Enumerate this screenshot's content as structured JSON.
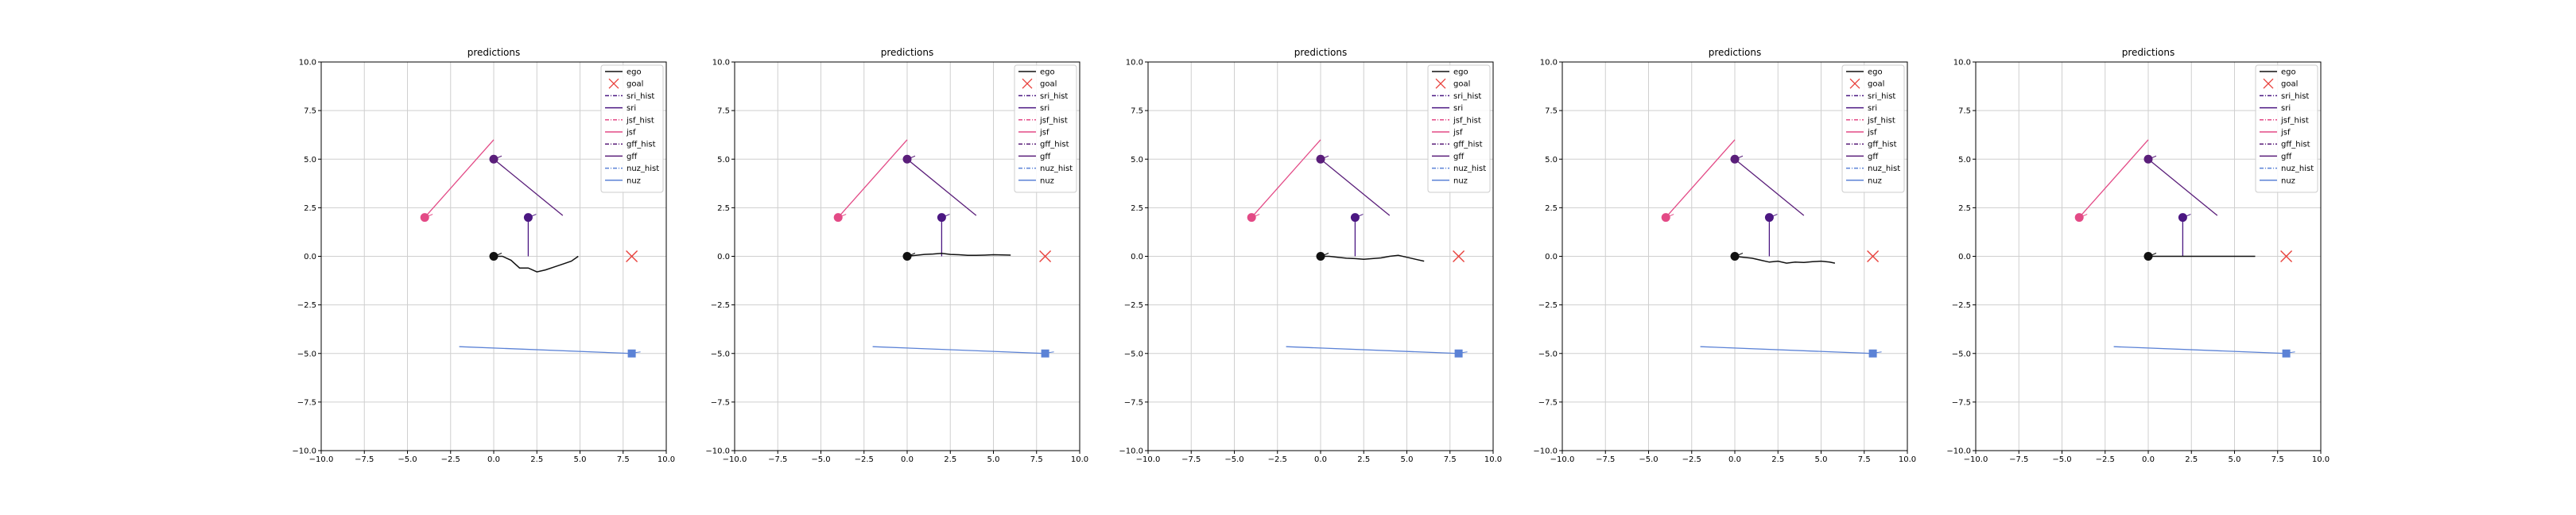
{
  "figure": {
    "colors": {
      "ego": "#111111",
      "goal": "#e8413c",
      "sri": "#4b1782",
      "jsf": "#e34a86",
      "gff": "#5a1e7a",
      "nuz": "#5b82d6",
      "grid": "#cfcfcf"
    }
  },
  "legend_labels": [
    "ego",
    "goal",
    "sri_hist",
    "sri",
    "jsf_hist",
    "jsf",
    "gff_hist",
    "gff",
    "nuz_hist",
    "nuz"
  ],
  "chart_data": [
    {
      "type": "line",
      "title": "predictions",
      "xlim": [
        -10,
        10
      ],
      "ylim": [
        -10,
        10
      ],
      "xticks": [
        "−10.0",
        "−7.5",
        "−5.0",
        "−2.5",
        "0.0",
        "2.5",
        "5.0",
        "7.5",
        "10.0"
      ],
      "yticks": [
        "−10.0",
        "−7.5",
        "−5.0",
        "−2.5",
        "0.0",
        "2.5",
        "5.0",
        "7.5",
        "10.0"
      ],
      "grid": true,
      "legend_position": "top-right",
      "ego": [
        [
          0,
          0
        ],
        [
          0.5,
          0
        ],
        [
          1.0,
          -0.2
        ],
        [
          1.5,
          -0.6
        ],
        [
          2.0,
          -0.6
        ],
        [
          2.5,
          -0.8
        ],
        [
          3.0,
          -0.7
        ],
        [
          3.5,
          -0.55
        ],
        [
          4.0,
          -0.4
        ],
        [
          4.5,
          -0.25
        ],
        [
          4.9,
          0.0
        ]
      ],
      "goal": [
        8,
        0
      ],
      "sri": {
        "start": [
          2,
          2
        ],
        "end": [
          2,
          0
        ]
      },
      "jsf": {
        "start": [
          -4,
          2
        ],
        "end": [
          0,
          6
        ]
      },
      "gff": {
        "start": [
          0,
          5
        ],
        "end": [
          4,
          2.1
        ]
      },
      "nuz": {
        "start": [
          8,
          -5
        ],
        "end": [
          -2,
          -4.65
        ]
      }
    },
    {
      "type": "line",
      "title": "predictions",
      "xlim": [
        -10,
        10
      ],
      "ylim": [
        -10,
        10
      ],
      "xticks": [
        "−10.0",
        "−7.5",
        "−5.0",
        "−2.5",
        "0.0",
        "2.5",
        "5.0",
        "7.5",
        "10.0"
      ],
      "yticks": [
        "−10.0",
        "−7.5",
        "−5.0",
        "−2.5",
        "0.0",
        "2.5",
        "5.0",
        "7.5",
        "10.0"
      ],
      "grid": true,
      "legend_position": "top-right",
      "ego": [
        [
          0,
          0
        ],
        [
          0.5,
          0.05
        ],
        [
          1.0,
          0.1
        ],
        [
          1.5,
          0.12
        ],
        [
          2.0,
          0.15
        ],
        [
          2.5,
          0.1
        ],
        [
          3.0,
          0.08
        ],
        [
          3.5,
          0.05
        ],
        [
          4.0,
          0.05
        ],
        [
          4.5,
          0.06
        ],
        [
          5.0,
          0.08
        ],
        [
          5.5,
          0.07
        ],
        [
          6.0,
          0.06
        ]
      ],
      "goal": [
        8,
        0
      ],
      "sri": {
        "start": [
          2,
          2
        ],
        "end": [
          2,
          0
        ]
      },
      "jsf": {
        "start": [
          -4,
          2
        ],
        "end": [
          0,
          6
        ]
      },
      "gff": {
        "start": [
          0,
          5
        ],
        "end": [
          4,
          2.1
        ]
      },
      "nuz": {
        "start": [
          8,
          -5
        ],
        "end": [
          -2,
          -4.65
        ]
      }
    },
    {
      "type": "line",
      "title": "predictions",
      "xlim": [
        -10,
        10
      ],
      "ylim": [
        -10,
        10
      ],
      "xticks": [
        "−10.0",
        "−7.5",
        "−5.0",
        "−2.5",
        "0.0",
        "2.5",
        "5.0",
        "7.5",
        "10.0"
      ],
      "yticks": [
        "−10.0",
        "−7.5",
        "−5.0",
        "−2.5",
        "0.0",
        "2.5",
        "5.0",
        "7.5",
        "10.0"
      ],
      "grid": true,
      "legend_position": "top-right",
      "ego": [
        [
          0,
          0
        ],
        [
          0.5,
          0.0
        ],
        [
          1.0,
          -0.05
        ],
        [
          1.5,
          -0.1
        ],
        [
          2.0,
          -0.12
        ],
        [
          2.5,
          -0.15
        ],
        [
          3.0,
          -0.12
        ],
        [
          3.5,
          -0.08
        ],
        [
          4.0,
          0.0
        ],
        [
          4.5,
          0.05
        ],
        [
          5.0,
          -0.05
        ],
        [
          5.5,
          -0.15
        ],
        [
          6.0,
          -0.25
        ]
      ],
      "goal": [
        8,
        0
      ],
      "sri": {
        "start": [
          2,
          2
        ],
        "end": [
          2,
          0
        ]
      },
      "jsf": {
        "start": [
          -4,
          2
        ],
        "end": [
          0,
          6
        ]
      },
      "gff": {
        "start": [
          0,
          5
        ],
        "end": [
          4,
          2.1
        ]
      },
      "nuz": {
        "start": [
          8,
          -5
        ],
        "end": [
          -2,
          -4.65
        ]
      }
    },
    {
      "type": "line",
      "title": "predictions",
      "xlim": [
        -10,
        10
      ],
      "ylim": [
        -10,
        10
      ],
      "xticks": [
        "−10.0",
        "−7.5",
        "−5.0",
        "−2.5",
        "0.0",
        "2.5",
        "5.0",
        "7.5",
        "10.0"
      ],
      "yticks": [
        "−10.0",
        "−7.5",
        "−5.0",
        "−2.5",
        "0.0",
        "2.5",
        "5.0",
        "7.5",
        "10.0"
      ],
      "grid": true,
      "legend_position": "top-right",
      "ego": [
        [
          0,
          0
        ],
        [
          0.5,
          -0.05
        ],
        [
          1.0,
          -0.1
        ],
        [
          1.5,
          -0.2
        ],
        [
          2.0,
          -0.3
        ],
        [
          2.5,
          -0.25
        ],
        [
          3.0,
          -0.35
        ],
        [
          3.5,
          -0.3
        ],
        [
          4.0,
          -0.32
        ],
        [
          4.5,
          -0.28
        ],
        [
          5.0,
          -0.25
        ],
        [
          5.5,
          -0.3
        ],
        [
          5.8,
          -0.35
        ]
      ],
      "goal": [
        8,
        0
      ],
      "sri": {
        "start": [
          2,
          2
        ],
        "end": [
          2,
          0
        ]
      },
      "jsf": {
        "start": [
          -4,
          2
        ],
        "end": [
          0,
          6
        ]
      },
      "gff": {
        "start": [
          0,
          5
        ],
        "end": [
          4,
          2.1
        ]
      },
      "nuz": {
        "start": [
          8,
          -5
        ],
        "end": [
          -2,
          -4.65
        ]
      }
    },
    {
      "type": "line",
      "title": "predictions",
      "xlim": [
        -10,
        10
      ],
      "ylim": [
        -10,
        10
      ],
      "xticks": [
        "−10.0",
        "−7.5",
        "−5.0",
        "−2.5",
        "0.0",
        "2.5",
        "5.0",
        "7.5",
        "10.0"
      ],
      "yticks": [
        "−10.0",
        "−7.5",
        "−5.0",
        "−2.5",
        "0.0",
        "2.5",
        "5.0",
        "7.5",
        "10.0"
      ],
      "grid": true,
      "legend_position": "top-right",
      "ego": [
        [
          0,
          0
        ],
        [
          6.2,
          0
        ]
      ],
      "goal": [
        8,
        0
      ],
      "sri": {
        "start": [
          2,
          2
        ],
        "end": [
          2,
          0
        ]
      },
      "jsf": {
        "start": [
          -4,
          2
        ],
        "end": [
          0,
          6
        ]
      },
      "gff": {
        "start": [
          0,
          5
        ],
        "end": [
          4,
          2.1
        ]
      },
      "nuz": {
        "start": [
          8,
          -5
        ],
        "end": [
          -2,
          -4.65
        ]
      }
    }
  ]
}
